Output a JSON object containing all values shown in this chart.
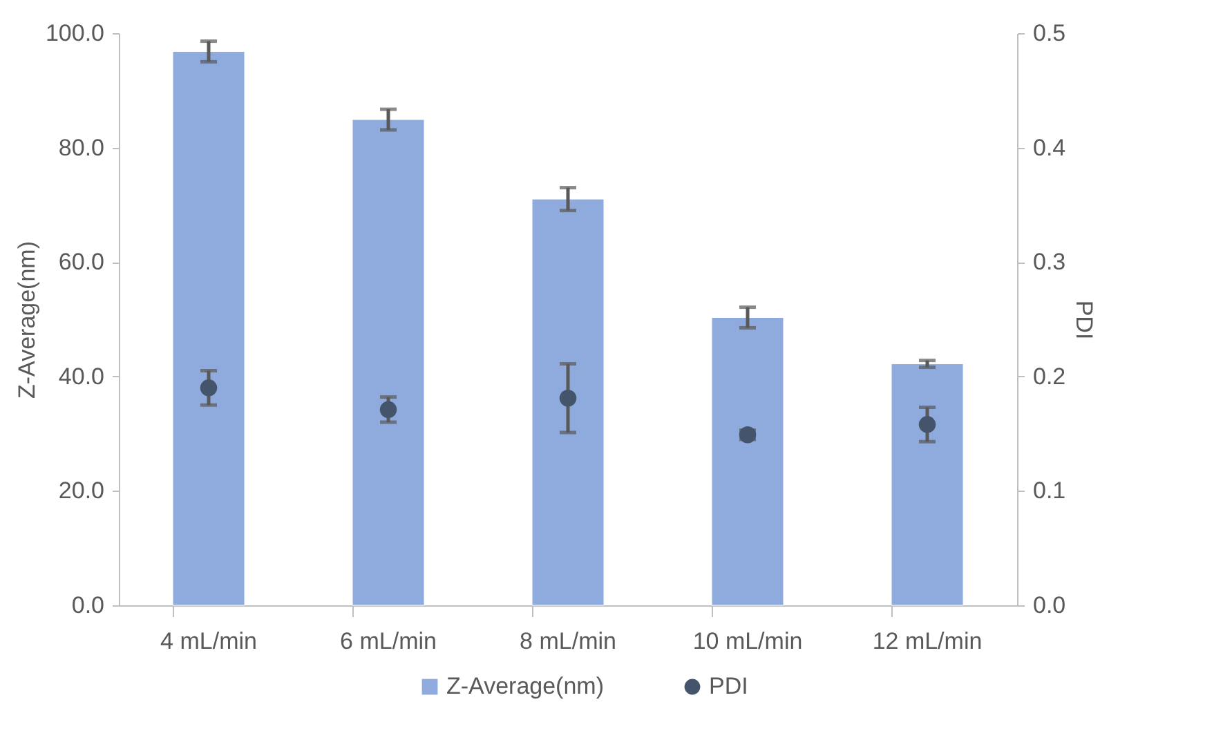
{
  "chart_data": {
    "type": "bar",
    "categories": [
      "4 mL/min",
      "6 mL/min",
      "8 mL/min",
      "10 mL/min",
      "12 mL/min"
    ],
    "ylabel": "Z-Average(nm)",
    "y2label": "PDI",
    "ylim": [
      0,
      100
    ],
    "yticks": [
      {
        "value": 0,
        "label": "0.0"
      },
      {
        "value": 20,
        "label": "20.0"
      },
      {
        "value": 40,
        "label": "40.0"
      },
      {
        "value": 60,
        "label": "60.0"
      },
      {
        "value": 80,
        "label": "80.0"
      },
      {
        "value": 100,
        "label": "100.0"
      }
    ],
    "y2lim": [
      0,
      0.5
    ],
    "y2ticks": [
      {
        "value": 0,
        "label": "0.0"
      },
      0.1,
      0.2,
      0.3,
      0.4,
      0.5
    ],
    "series": [
      {
        "name": "Z-Average(nm)",
        "color": "#8faadc",
        "values": [
          96.8,
          84.9,
          71.0,
          50.3,
          42.2
        ],
        "errors": [
          1.8,
          1.8,
          2.0,
          1.8,
          0.6
        ]
      },
      {
        "name": "PDI",
        "type": "scatter",
        "axis": "y2",
        "color": "#44546a",
        "values": [
          0.19,
          0.171,
          0.181,
          0.149,
          0.158
        ],
        "errors": [
          0.015,
          0.011,
          0.03,
          0.004,
          0.015
        ]
      }
    ],
    "grid": false,
    "legend": "bottom",
    "marker": "circle"
  }
}
